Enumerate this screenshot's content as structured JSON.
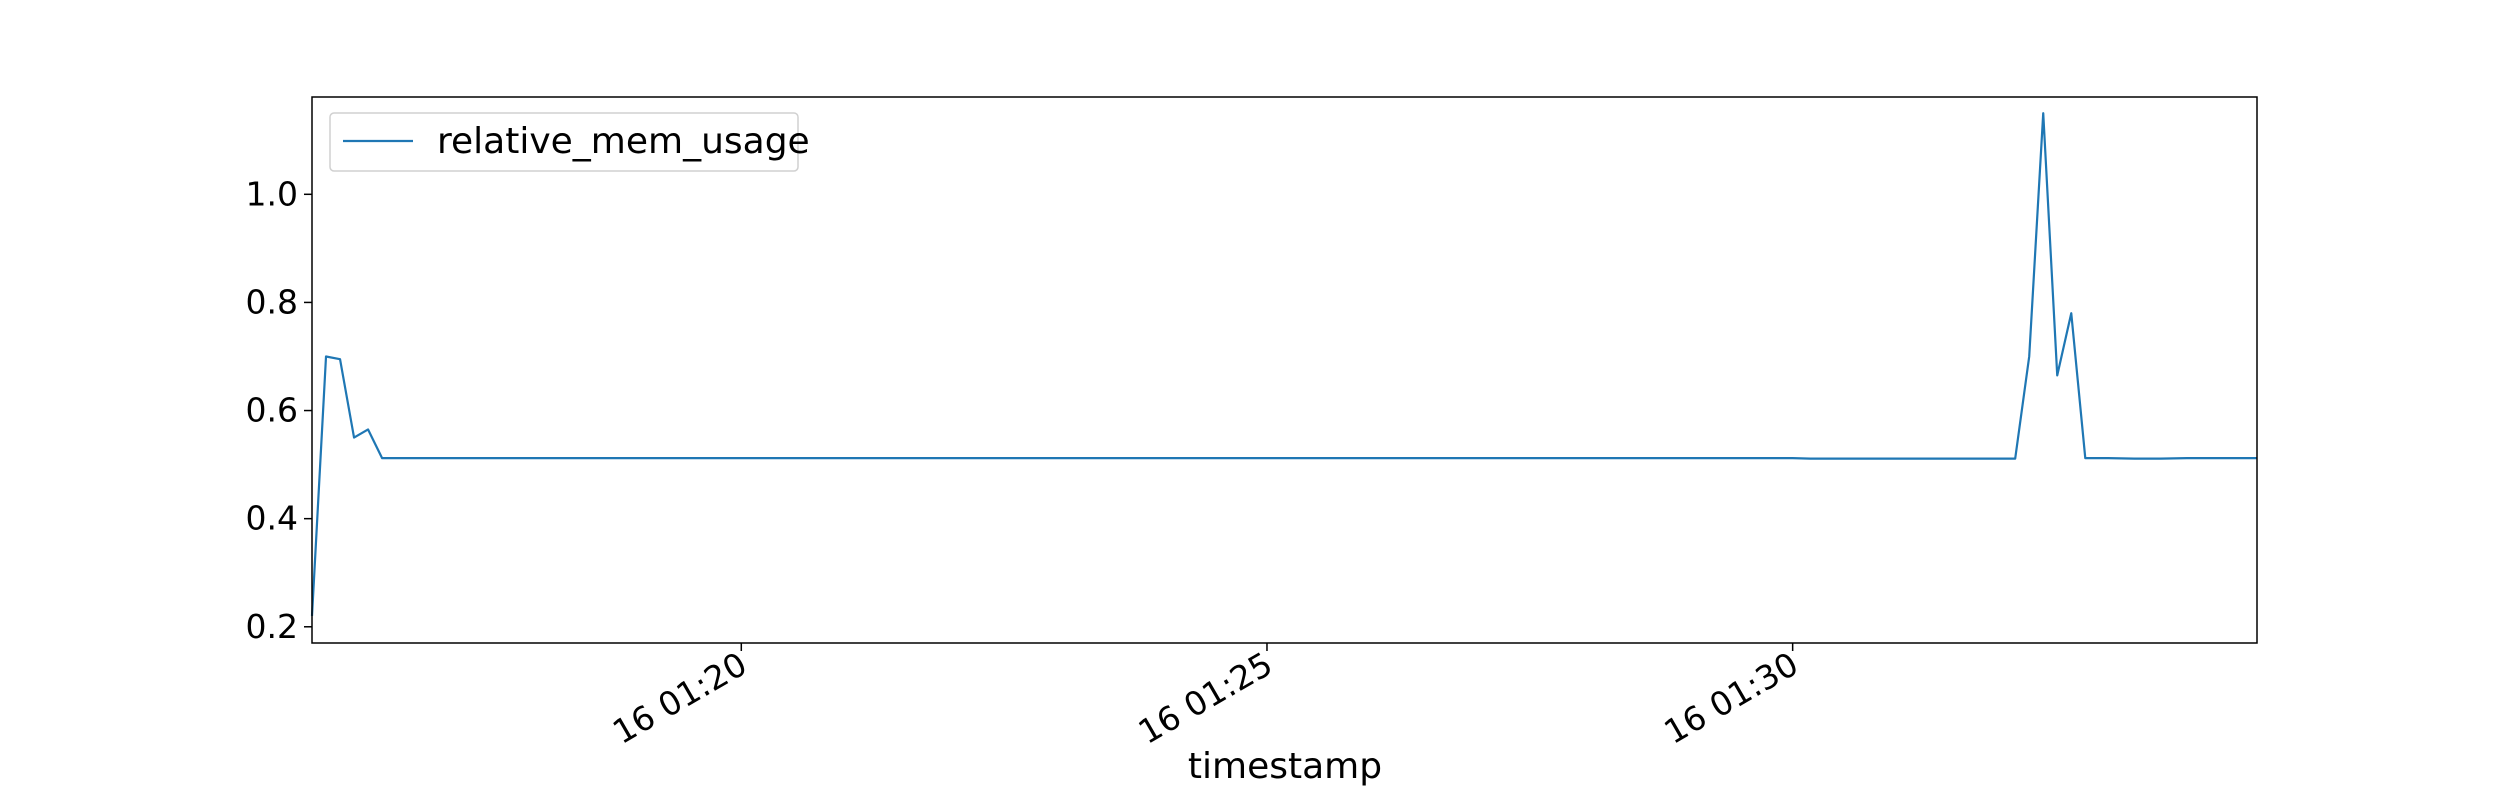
{
  "chart_data": {
    "type": "line",
    "title": "",
    "xlabel": "timestamp",
    "ylabel": "",
    "x_ticks": [
      "16 01:20",
      "16 01:25",
      "16 01:30"
    ],
    "y_ticks": [
      "0.2",
      "0.4",
      "0.6",
      "0.8",
      "1.0"
    ],
    "ylim": [
      0.17,
      1.18
    ],
    "xlim": [
      "16 01:15:55",
      "16 01:34:25"
    ],
    "grid": false,
    "legend_position": "top-left",
    "series": [
      {
        "name": "relative_mem_usage",
        "color": "#1f77b4",
        "points": [
          [
            "16 01:15:55",
            0.22
          ],
          [
            "16 01:16:03",
            0.7
          ],
          [
            "16 01:16:11",
            0.695
          ],
          [
            "16 01:16:19",
            0.55
          ],
          [
            "16 01:16:27",
            0.565
          ],
          [
            "16 01:16:35",
            0.512
          ],
          [
            "16 01:17:00",
            0.512
          ],
          [
            "16 01:20:00",
            0.512
          ],
          [
            "16 01:22:00",
            0.512
          ],
          [
            "16 01:25:00",
            0.512
          ],
          [
            "16 01:28:00",
            0.512
          ],
          [
            "16 01:30:00",
            0.512
          ],
          [
            "16 01:30:10",
            0.511
          ],
          [
            "16 01:32:00",
            0.511
          ],
          [
            "16 01:32:07",
            0.511
          ],
          [
            "16 01:32:15",
            0.7
          ],
          [
            "16 01:32:23",
            1.15
          ],
          [
            "16 01:32:31",
            0.665
          ],
          [
            "16 01:32:39",
            0.78
          ],
          [
            "16 01:32:47",
            0.512
          ],
          [
            "16 01:33:00",
            0.512
          ],
          [
            "16 01:33:15",
            0.511
          ],
          [
            "16 01:33:30",
            0.511
          ],
          [
            "16 01:33:45",
            0.512
          ],
          [
            "16 01:34:25",
            0.512
          ]
        ]
      }
    ]
  }
}
